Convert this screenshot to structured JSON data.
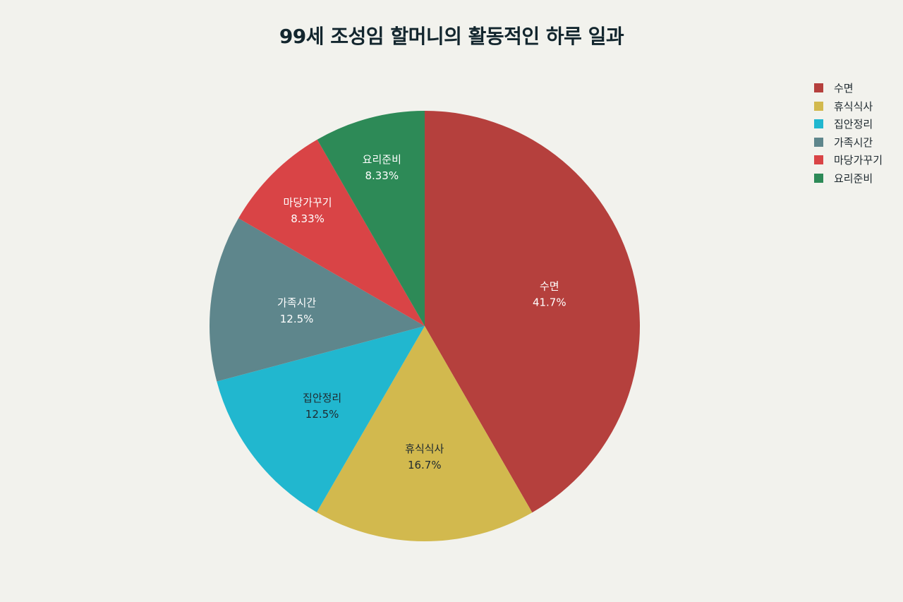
{
  "chart_data": {
    "type": "pie",
    "title": "99세 조성임 할머니의 활동적인 하루 일과",
    "slices": [
      {
        "label": "수면",
        "value": 41.7,
        "display": "41.7%",
        "color": "#b5403d",
        "text_color": "#ffffff"
      },
      {
        "label": "휴식식사",
        "value": 16.7,
        "display": "16.7%",
        "color": "#d2b94e",
        "text_color": "#1f2a30"
      },
      {
        "label": "집안정리",
        "value": 12.5,
        "display": "12.5%",
        "color": "#21b7cf",
        "text_color": "#1f2a30"
      },
      {
        "label": "가족시간",
        "value": 12.5,
        "display": "12.5%",
        "color": "#5e868c",
        "text_color": "#ffffff"
      },
      {
        "label": "마당가꾸기",
        "value": 8.33,
        "display": "8.33%",
        "color": "#d94446",
        "text_color": "#ffffff"
      },
      {
        "label": "요리준비",
        "value": 8.33,
        "display": "8.33%",
        "color": "#2d8a57",
        "text_color": "#ffffff"
      }
    ],
    "legend_position": "top-right"
  }
}
